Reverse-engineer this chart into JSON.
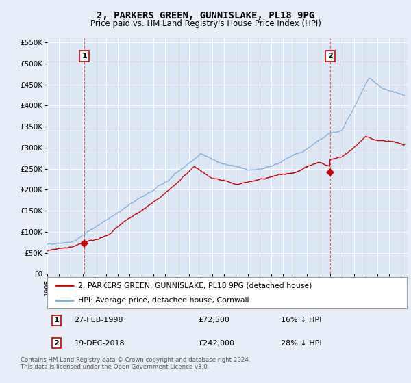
{
  "title": "2, PARKERS GREEN, GUNNISLAKE, PL18 9PG",
  "subtitle": "Price paid vs. HM Land Registry's House Price Index (HPI)",
  "background_color": "#e8eef7",
  "plot_bg_color": "#dce6f5",
  "grid_color": "#ffffff",
  "ylim": [
    0,
    560000
  ],
  "yticks": [
    0,
    50000,
    100000,
    150000,
    200000,
    250000,
    300000,
    350000,
    400000,
    450000,
    500000,
    550000
  ],
  "xlim_start": 1995.0,
  "xlim_end": 2025.5,
  "sale1_x": 1998.15,
  "sale1_y": 72500,
  "sale1_label": "1",
  "sale2_x": 2018.97,
  "sale2_y": 242000,
  "sale2_label": "2",
  "red_color": "#cc0000",
  "blue_color": "#7aaddc",
  "legend_label1": "2, PARKERS GREEN, GUNNISLAKE, PL18 9PG (detached house)",
  "legend_label2": "HPI: Average price, detached house, Cornwall",
  "table_row1": [
    "1",
    "27-FEB-1998",
    "£72,500",
    "16% ↓ HPI"
  ],
  "table_row2": [
    "2",
    "19-DEC-2018",
    "£242,000",
    "28% ↓ HPI"
  ],
  "footer": "Contains HM Land Registry data © Crown copyright and database right 2024.\nThis data is licensed under the Open Government Licence v3.0."
}
